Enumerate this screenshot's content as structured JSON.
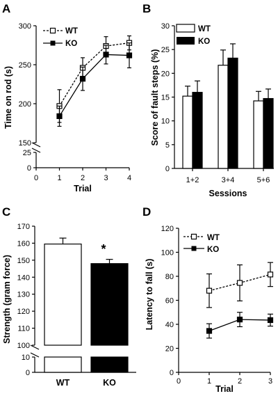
{
  "panels": [
    "A",
    "B",
    "C",
    "D"
  ],
  "chart_data": [
    {
      "panel": "A",
      "type": "line",
      "xlabel": "Trial",
      "ylabel": "Time on rod (s)",
      "x": [
        1,
        2,
        3,
        4
      ],
      "xticks": [
        "0",
        "1",
        "2",
        "3",
        "4"
      ],
      "xlim": [
        0,
        4
      ],
      "yticks_upper": [
        "150",
        "200",
        "250",
        "300"
      ],
      "yticks_lower": [
        "0",
        "25"
      ],
      "ylim": [
        0,
        300
      ],
      "axis_break": [
        25,
        150
      ],
      "legend": "top-left",
      "series": [
        {
          "name": "WT",
          "values": [
            197,
            246,
            274,
            278
          ],
          "err": [
            21,
            13,
            12,
            9
          ],
          "style": "dashed-open-square"
        },
        {
          "name": "KO",
          "values": [
            184,
            232,
            263,
            262
          ],
          "err": [
            13,
            15,
            12,
            16
          ],
          "style": "solid-filled-square"
        }
      ]
    },
    {
      "panel": "B",
      "type": "bar",
      "xlabel": "Sessions",
      "ylabel": "Score of fault steps  (%)",
      "categories": [
        "1+2",
        "3+4",
        "5+6"
      ],
      "yticks": [
        "0",
        "5",
        "10",
        "15",
        "20",
        "25",
        "30"
      ],
      "ylim": [
        0,
        30
      ],
      "legend": "top-left",
      "series": [
        {
          "name": "WT",
          "values": [
            15.2,
            21.7,
            14.2
          ],
          "err": [
            2.1,
            3.2,
            2.0
          ],
          "fill": "white"
        },
        {
          "name": "KO",
          "values": [
            16.0,
            23.2,
            14.7
          ],
          "err": [
            2.4,
            3.0,
            2.0
          ],
          "fill": "black"
        }
      ]
    },
    {
      "panel": "C",
      "type": "bar",
      "ylabel": "Strength (gram force)",
      "categories": [
        "WT",
        "KO"
      ],
      "values": [
        159.5,
        148.0
      ],
      "err": [
        3.5,
        2.5
      ],
      "fills": [
        "white",
        "black"
      ],
      "yticks_upper": [
        "100",
        "110",
        "120",
        "130",
        "140",
        "150",
        "160",
        "170"
      ],
      "yticks_lower": [
        "0",
        "10"
      ],
      "ylim": [
        0,
        170
      ],
      "axis_break": [
        10,
        100
      ],
      "annotation": "*"
    },
    {
      "panel": "D",
      "type": "line",
      "xlabel": "Trial",
      "ylabel": "Latency to fall (s)",
      "x": [
        1,
        2,
        3
      ],
      "xticks": [
        "0",
        "1",
        "2",
        "3"
      ],
      "xlim": [
        0,
        3
      ],
      "yticks": [
        "0",
        "20",
        "40",
        "60",
        "80",
        "100",
        "120"
      ],
      "ylim": [
        0,
        120
      ],
      "legend": "top-left",
      "series": [
        {
          "name": "WT",
          "values": [
            68,
            74.5,
            81.5
          ],
          "err": [
            14,
            15,
            10
          ],
          "style": "dashed-open-square"
        },
        {
          "name": "KO",
          "values": [
            34.5,
            44,
            43.5
          ],
          "err": [
            6,
            6,
            5
          ],
          "style": "solid-filled-square"
        }
      ]
    }
  ]
}
